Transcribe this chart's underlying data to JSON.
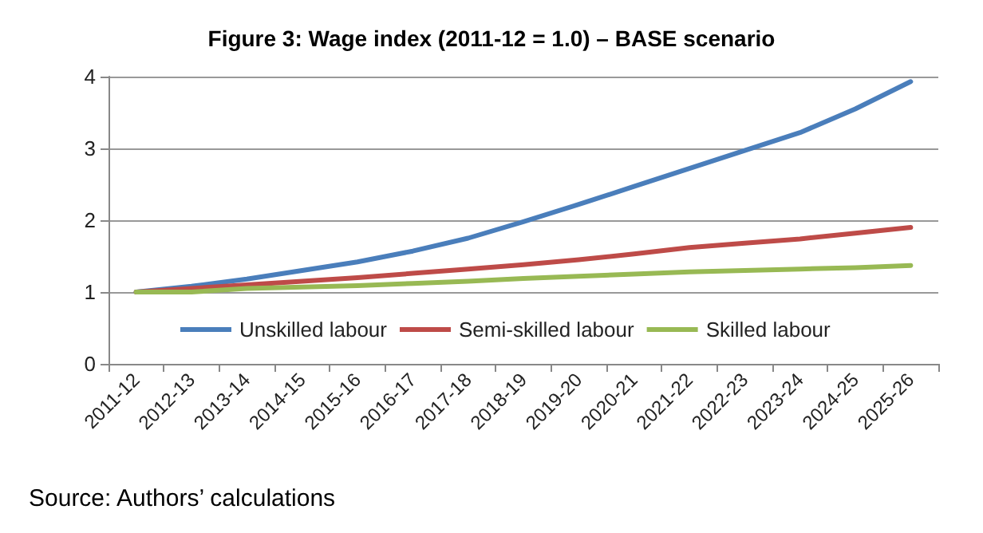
{
  "chart_data": {
    "type": "line",
    "title": "Figure 3: Wage index (2011-12 = 1.0) – BASE scenario",
    "categories": [
      "2011-12",
      "2012-13",
      "2013-14",
      "2014-15",
      "2015-16",
      "2016-17",
      "2017-18",
      "2018-19",
      "2019-20",
      "2020-21",
      "2021-22",
      "2022-23",
      "2023-24",
      "2024-25",
      "2025-26"
    ],
    "series": [
      {
        "name": "Unskilled labour",
        "color": "#4a7ebb",
        "values": [
          1.0,
          1.08,
          1.18,
          1.3,
          1.42,
          1.57,
          1.75,
          1.98,
          2.22,
          2.47,
          2.72,
          2.97,
          3.22,
          3.55,
          3.93
        ]
      },
      {
        "name": "Semi-skilled labour",
        "color": "#be4b48",
        "values": [
          1.0,
          1.05,
          1.1,
          1.15,
          1.2,
          1.26,
          1.32,
          1.38,
          1.45,
          1.53,
          1.62,
          1.68,
          1.74,
          1.82,
          1.9
        ]
      },
      {
        "name": "Skilled labour",
        "color": "#98b954",
        "values": [
          1.0,
          1.0,
          1.05,
          1.07,
          1.09,
          1.12,
          1.15,
          1.19,
          1.22,
          1.25,
          1.28,
          1.3,
          1.32,
          1.34,
          1.37
        ]
      }
    ],
    "ylim": [
      0,
      4
    ],
    "yticks": [
      0,
      1,
      2,
      3,
      4
    ],
    "grid": "y",
    "legend": "bottom",
    "marker": "none",
    "line_style": "solid",
    "annotations": [
      "Source: Authors’ calculations"
    ]
  }
}
